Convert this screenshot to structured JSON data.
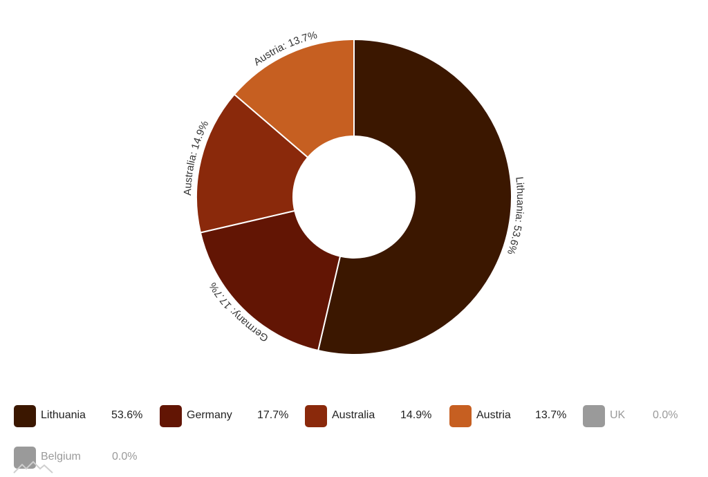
{
  "chart_data": {
    "type": "pie",
    "donut": true,
    "title": "",
    "slices": [
      {
        "name": "Lithuania",
        "value": 53.6,
        "label": "Lithuania: 53.6%",
        "color": "#3b1700"
      },
      {
        "name": "Germany",
        "value": 17.7,
        "label": "Germany: 17.7%",
        "color": "#621504"
      },
      {
        "name": "Australia",
        "value": 14.9,
        "label": "Australia: 14.9%",
        "color": "#8a290b"
      },
      {
        "name": "Austria",
        "value": 13.7,
        "label": "Austria: 13.7%",
        "color": "#c65f21"
      },
      {
        "name": "UK",
        "value": 0.0,
        "label": "",
        "color": "#9a9a9a"
      },
      {
        "name": "Belgium",
        "value": 0.0,
        "label": "",
        "color": "#9a9a9a"
      }
    ],
    "legend_placement": "bottom"
  },
  "legend": [
    {
      "name": "Lithuania",
      "value": "53.6%",
      "color": "#3b1700",
      "enabled": true
    },
    {
      "name": "Germany",
      "value": "17.7%",
      "color": "#621504",
      "enabled": true
    },
    {
      "name": "Australia",
      "value": "14.9%",
      "color": "#8a290b",
      "enabled": true
    },
    {
      "name": "Austria",
      "value": "13.7%",
      "color": "#c65f21",
      "enabled": true
    },
    {
      "name": "UK",
      "value": "0.0%",
      "color": "#9a9a9a",
      "enabled": false
    },
    {
      "name": "Belgium",
      "value": "0.0%",
      "color": "#9a9a9a",
      "enabled": false
    }
  ]
}
